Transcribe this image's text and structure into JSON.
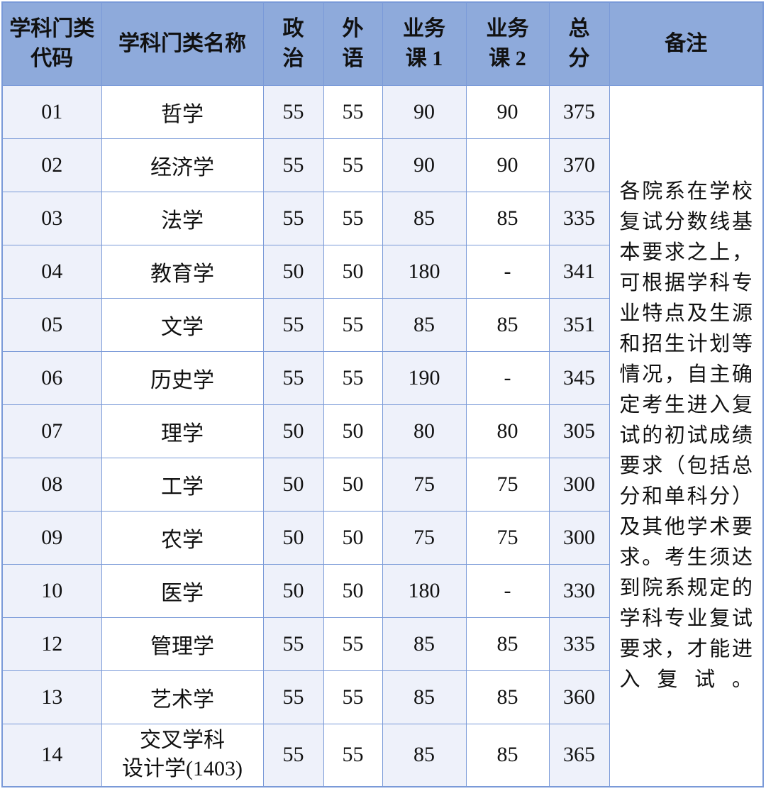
{
  "headers": [
    "学科门类代码",
    "学科门类名称",
    "政治",
    "外语",
    "业务课1",
    "业务课2",
    "总分",
    "备注"
  ],
  "header_lines": {
    "code": [
      "学科门类",
      "代码"
    ],
    "zz": [
      "政",
      "治"
    ],
    "wy": [
      "外",
      "语"
    ],
    "y1": [
      "业务",
      "课 1"
    ],
    "y2": [
      "业务",
      "课 2"
    ],
    "zf": [
      "总",
      "分"
    ]
  },
  "rows": [
    {
      "code": "01",
      "name": "哲学",
      "zz": "55",
      "wy": "55",
      "y1": "90",
      "y2": "90",
      "zf": "375"
    },
    {
      "code": "02",
      "name": "经济学",
      "zz": "55",
      "wy": "55",
      "y1": "90",
      "y2": "90",
      "zf": "370"
    },
    {
      "code": "03",
      "name": "法学",
      "zz": "55",
      "wy": "55",
      "y1": "85",
      "y2": "85",
      "zf": "335"
    },
    {
      "code": "04",
      "name": "教育学",
      "zz": "50",
      "wy": "50",
      "y1": "180",
      "y2": "-",
      "zf": "341"
    },
    {
      "code": "05",
      "name": "文学",
      "zz": "55",
      "wy": "55",
      "y1": "85",
      "y2": "85",
      "zf": "351"
    },
    {
      "code": "06",
      "name": "历史学",
      "zz": "55",
      "wy": "55",
      "y1": "190",
      "y2": "-",
      "zf": "345"
    },
    {
      "code": "07",
      "name": "理学",
      "zz": "50",
      "wy": "50",
      "y1": "80",
      "y2": "80",
      "zf": "305"
    },
    {
      "code": "08",
      "name": "工学",
      "zz": "50",
      "wy": "50",
      "y1": "75",
      "y2": "75",
      "zf": "300"
    },
    {
      "code": "09",
      "name": "农学",
      "zz": "50",
      "wy": "50",
      "y1": "75",
      "y2": "75",
      "zf": "300"
    },
    {
      "code": "10",
      "name": "医学",
      "zz": "50",
      "wy": "50",
      "y1": "180",
      "y2": "-",
      "zf": "330"
    },
    {
      "code": "12",
      "name": "管理学",
      "zz": "55",
      "wy": "55",
      "y1": "85",
      "y2": "85",
      "zf": "335"
    },
    {
      "code": "13",
      "name": "艺术学",
      "zz": "55",
      "wy": "55",
      "y1": "85",
      "y2": "85",
      "zf": "360"
    },
    {
      "code": "14",
      "name": "交叉学科 设计学(1403)",
      "name_lines": [
        "交叉学科",
        "设计学(1403)"
      ],
      "zz": "55",
      "wy": "55",
      "y1": "85",
      "y2": "85",
      "zf": "365"
    }
  ],
  "remark": "各院系在学校复试分数线基本要求之上，可根据学科专业特点及生源和招生计划等情况，自主确定考生进入复试的初试成绩要求（包括总分和单科分）及其他学术要求。考生须达到院系规定的学科专业复试要求，才能进入复试。",
  "colors": {
    "header": "#8eaadb",
    "light_column": "#eef1fa",
    "border": "#7a9ad8"
  }
}
